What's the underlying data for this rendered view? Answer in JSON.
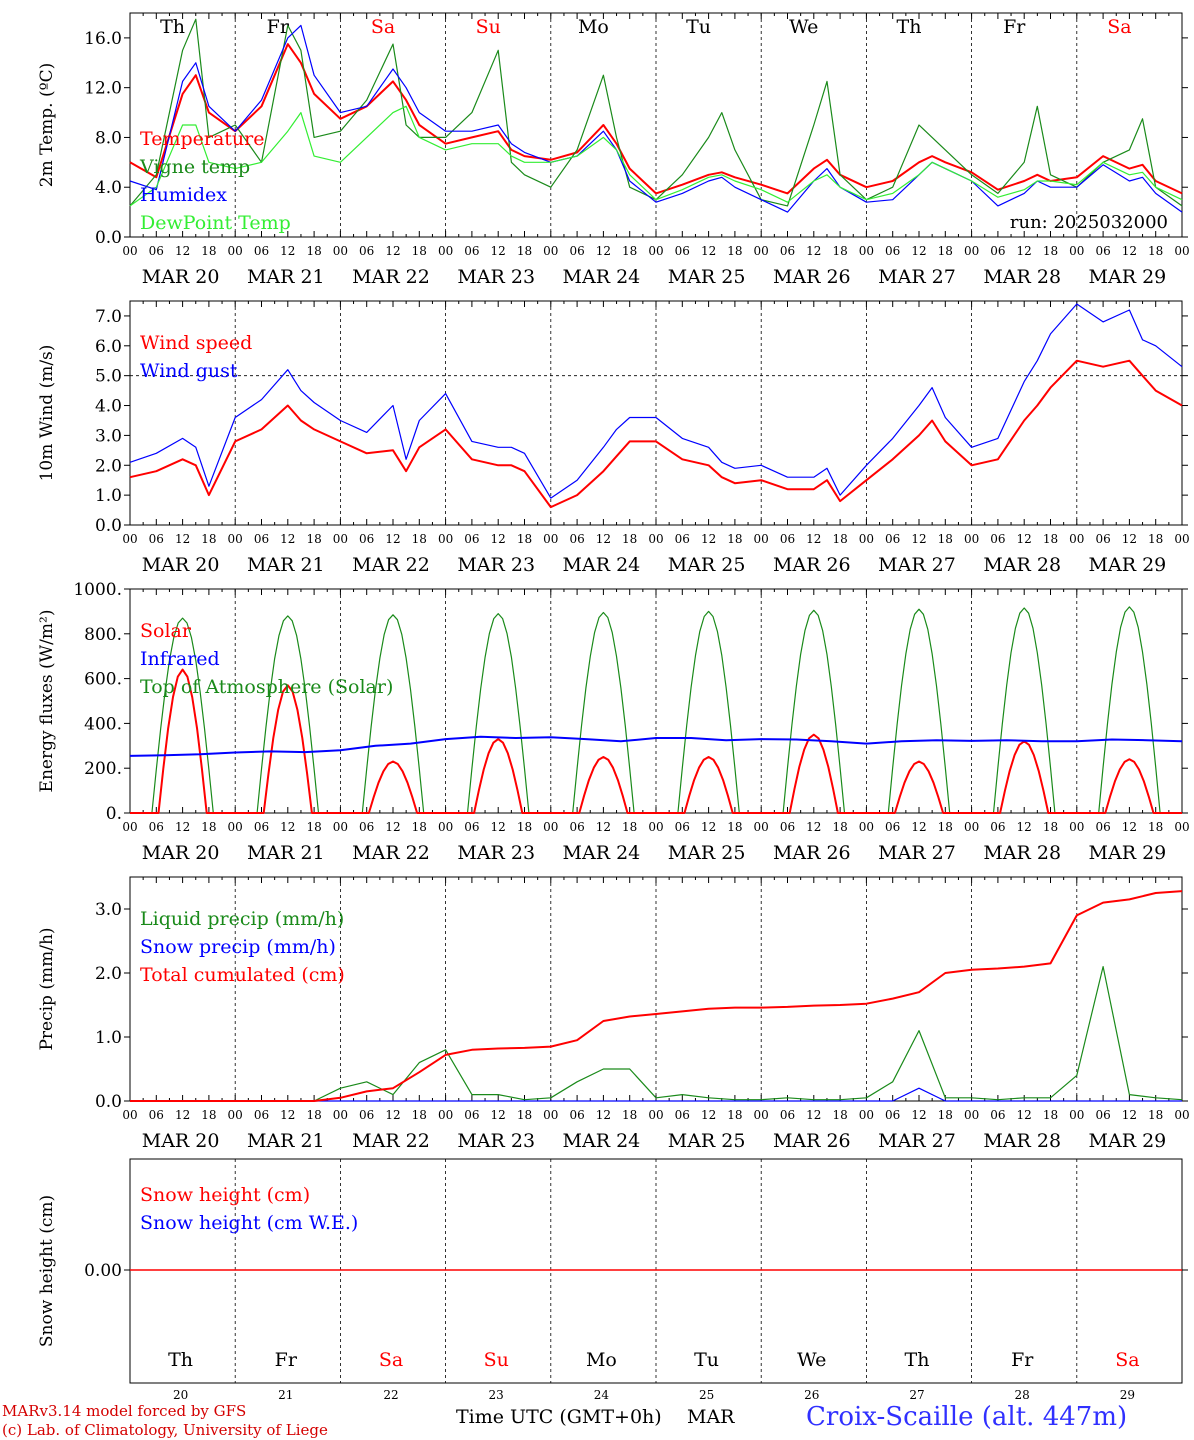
{
  "colors": {
    "red": "#ff0000",
    "green": "#1a8a1a",
    "blue": "#0000ff",
    "lightgreen": "#33ee33",
    "weekday": "#000000",
    "weekend": "#ff0000"
  },
  "days": {
    "weekday_labels": [
      "Th",
      "Fr",
      "Sa",
      "Su",
      "Mo",
      "Tu",
      "We",
      "Th",
      "Fr",
      "Sa"
    ],
    "weekend_flags": [
      false,
      false,
      true,
      true,
      false,
      false,
      false,
      false,
      false,
      true
    ],
    "date_labels": [
      "MAR 20",
      "MAR 21",
      "MAR 22",
      "MAR 23",
      "MAR 24",
      "MAR 25",
      "MAR 26",
      "MAR 27",
      "MAR 28",
      "MAR 29"
    ],
    "day_numbers": [
      "20",
      "21",
      "22",
      "23",
      "24",
      "25",
      "26",
      "27",
      "28",
      "29"
    ],
    "hour_ticks": [
      "00",
      "06",
      "12",
      "18"
    ],
    "final_tick": "00"
  },
  "footer": {
    "model_line": "MARv3.14 model forced by GFS",
    "copyright_line": "(c) Lab. of Climatology, University of Liege",
    "time_axis_label": "Time UTC (GMT+0h)",
    "month_label": "MAR",
    "station_title": "Croix-Scaille (alt. 447m)"
  },
  "chart_data": [
    {
      "type": "line",
      "ylabel": "2m Temp. (ºC)",
      "ylim": [
        0,
        18
      ],
      "yticks": [
        "0.0",
        "4.0",
        "8.0",
        "12.0",
        "16.0"
      ],
      "ytick_values": [
        0,
        4,
        8,
        12,
        16
      ],
      "annotation": "run: 2025032000",
      "x_hours": [
        0,
        6,
        12,
        15,
        18,
        24,
        30,
        36,
        39,
        42,
        48,
        54,
        60,
        63,
        66,
        72,
        78,
        84,
        87,
        90,
        96,
        102,
        108,
        111,
        114,
        120,
        126,
        132,
        135,
        138,
        144,
        150,
        156,
        159,
        162,
        168,
        174,
        180,
        183,
        186,
        192,
        198,
        204,
        207,
        210,
        216,
        222,
        228,
        231,
        234,
        240
      ],
      "series": [
        {
          "name": "Temperature",
          "color": "red",
          "values": [
            6.0,
            4.8,
            11.5,
            13.0,
            10.0,
            8.5,
            10.5,
            15.5,
            14.0,
            11.5,
            9.5,
            10.5,
            12.5,
            11.0,
            9.0,
            7.5,
            8.0,
            8.5,
            7.0,
            6.5,
            6.2,
            6.8,
            9.0,
            7.5,
            5.5,
            3.5,
            4.2,
            5.0,
            5.2,
            4.8,
            4.2,
            3.5,
            5.5,
            6.2,
            5.0,
            4.0,
            4.5,
            6.0,
            6.5,
            6.0,
            5.2,
            3.8,
            4.5,
            5.0,
            4.5,
            4.8,
            6.5,
            5.5,
            5.8,
            4.5,
            3.5
          ]
        },
        {
          "name": "Vigne temp",
          "color": "green",
          "values": [
            2.5,
            5.0,
            15.0,
            17.5,
            8.0,
            9.0,
            6.0,
            17.0,
            15.0,
            8.0,
            8.5,
            11.0,
            15.5,
            9.0,
            8.0,
            8.0,
            10.0,
            15.0,
            6.0,
            5.0,
            4.0,
            7.0,
            13.0,
            8.0,
            4.0,
            3.0,
            5.0,
            8.0,
            10.0,
            7.0,
            3.0,
            2.5,
            9.0,
            12.5,
            5.0,
            3.0,
            4.0,
            9.0,
            8.0,
            7.0,
            5.0,
            3.5,
            6.0,
            10.5,
            5.0,
            4.0,
            6.0,
            7.0,
            9.5,
            4.0,
            2.5
          ]
        },
        {
          "name": "Humidex",
          "color": "blue",
          "values": [
            4.5,
            3.8,
            12.5,
            14.0,
            10.5,
            8.5,
            11.0,
            16.0,
            17.0,
            13.0,
            10.0,
            10.5,
            13.5,
            12.0,
            10.0,
            8.5,
            8.5,
            9.0,
            7.5,
            6.8,
            6.0,
            6.5,
            8.5,
            7.0,
            4.5,
            2.8,
            3.5,
            4.5,
            4.8,
            4.0,
            3.0,
            2.0,
            4.5,
            5.5,
            4.0,
            2.8,
            3.0,
            5.0,
            6.0,
            5.5,
            4.5,
            2.5,
            3.5,
            4.5,
            4.0,
            4.0,
            5.8,
            4.5,
            4.8,
            3.5,
            2.0
          ]
        },
        {
          "name": "DewPoint Temp",
          "color": "lightgreen",
          "values": [
            2.5,
            4.0,
            9.0,
            9.0,
            6.0,
            5.5,
            6.0,
            8.5,
            10.0,
            6.5,
            6.0,
            8.0,
            10.0,
            10.5,
            8.0,
            7.0,
            7.5,
            7.5,
            6.5,
            6.0,
            6.0,
            6.5,
            8.0,
            7.0,
            5.0,
            3.0,
            3.8,
            4.8,
            5.0,
            4.5,
            3.8,
            2.8,
            4.5,
            5.0,
            4.0,
            3.0,
            3.5,
            5.0,
            6.0,
            5.5,
            4.5,
            3.2,
            3.8,
            4.5,
            4.5,
            4.2,
            6.0,
            5.0,
            5.2,
            4.0,
            3.0
          ]
        }
      ]
    },
    {
      "type": "line",
      "ylabel": "10m Wind (m/s)",
      "ylim": [
        0,
        7.5
      ],
      "yticks": [
        "0.0",
        "1.0",
        "2.0",
        "3.0",
        "4.0",
        "5.0",
        "6.0",
        "7.0"
      ],
      "ytick_values": [
        0,
        1,
        2,
        3,
        4,
        5,
        6,
        7
      ],
      "reference_line": 5.0,
      "x_hours": [
        0,
        6,
        12,
        15,
        18,
        24,
        30,
        36,
        39,
        42,
        48,
        54,
        60,
        63,
        66,
        72,
        78,
        84,
        87,
        90,
        96,
        102,
        108,
        111,
        114,
        120,
        126,
        132,
        135,
        138,
        144,
        150,
        156,
        159,
        162,
        168,
        174,
        180,
        183,
        186,
        192,
        198,
        204,
        207,
        210,
        216,
        222,
        228,
        231,
        234,
        240
      ],
      "series": [
        {
          "name": "Wind speed",
          "color": "red",
          "values": [
            1.6,
            1.8,
            2.2,
            2.0,
            1.0,
            2.8,
            3.2,
            4.0,
            3.5,
            3.2,
            2.8,
            2.4,
            2.5,
            1.8,
            2.6,
            3.2,
            2.2,
            2.0,
            2.0,
            1.8,
            0.6,
            1.0,
            1.8,
            2.3,
            2.8,
            2.8,
            2.2,
            2.0,
            1.6,
            1.4,
            1.5,
            1.2,
            1.2,
            1.5,
            0.8,
            1.5,
            2.2,
            3.0,
            3.5,
            2.8,
            2.0,
            2.2,
            3.5,
            4.0,
            4.6,
            5.5,
            5.3,
            5.5,
            5.0,
            4.5,
            4.0
          ]
        },
        {
          "name": "Wind gust",
          "color": "blue",
          "values": [
            2.1,
            2.4,
            2.9,
            2.6,
            1.3,
            3.6,
            4.2,
            5.2,
            4.5,
            4.1,
            3.5,
            3.1,
            4.0,
            2.2,
            3.5,
            4.4,
            2.8,
            2.6,
            2.6,
            2.4,
            0.9,
            1.5,
            2.6,
            3.2,
            3.6,
            3.6,
            2.9,
            2.6,
            2.1,
            1.9,
            2.0,
            1.6,
            1.6,
            1.9,
            1.0,
            2.0,
            2.9,
            4.0,
            4.6,
            3.6,
            2.6,
            2.9,
            4.8,
            5.5,
            6.4,
            7.4,
            6.8,
            7.2,
            6.2,
            6.0,
            5.3
          ]
        }
      ]
    },
    {
      "type": "line",
      "ylabel": "Energy fluxes (W/m²)",
      "ylim": [
        0,
        1000
      ],
      "yticks": [
        "0.",
        "200.",
        "400.",
        "600.",
        "800.",
        "1000."
      ],
      "ytick_values": [
        0,
        200,
        400,
        600,
        800,
        1000
      ],
      "series": [
        {
          "name": "Solar",
          "color": "red",
          "peaks": [
            640,
            570,
            230,
            330,
            250,
            250,
            350,
            230,
            320,
            240
          ]
        },
        {
          "name": "Infrared",
          "color": "blue",
          "values": [
            255,
            258,
            262,
            270,
            275,
            272,
            280,
            300,
            310,
            330,
            340,
            335,
            338,
            330,
            320,
            335,
            335,
            325,
            330,
            328,
            320,
            310,
            320,
            325,
            322,
            325,
            320,
            320,
            328,
            325,
            320
          ]
        },
        {
          "name": "Top of Atmosphere (Solar)",
          "color": "green",
          "peaks": [
            870,
            880,
            885,
            890,
            895,
            900,
            905,
            910,
            915,
            920
          ]
        }
      ]
    },
    {
      "type": "line",
      "ylabel": "Precip (mm/h)",
      "ylim": [
        0,
        3.5
      ],
      "yticks": [
        "0.0",
        "1.0",
        "2.0",
        "3.0"
      ],
      "ytick_values": [
        0,
        1,
        2,
        3
      ],
      "x_hours": [
        0,
        42,
        48,
        54,
        60,
        66,
        72,
        78,
        84,
        90,
        96,
        102,
        108,
        114,
        120,
        126,
        132,
        138,
        144,
        150,
        156,
        162,
        168,
        174,
        180,
        186,
        192,
        198,
        204,
        210,
        216,
        222,
        228,
        234,
        240
      ],
      "series": [
        {
          "name": "Liquid precip (mm/h)",
          "color": "green",
          "values": [
            0,
            0,
            0.2,
            0.3,
            0.1,
            0.6,
            0.8,
            0.1,
            0.1,
            0.02,
            0.05,
            0.3,
            0.5,
            0.5,
            0.05,
            0.1,
            0.05,
            0.02,
            0.02,
            0.05,
            0.02,
            0.02,
            0.05,
            0.3,
            1.1,
            0.05,
            0.05,
            0.02,
            0.05,
            0.05,
            0.4,
            2.1,
            0.1,
            0.05,
            0.02
          ]
        },
        {
          "name": "Snow precip (mm/h)",
          "color": "blue",
          "values": [
            0,
            0,
            0,
            0,
            0,
            0,
            0,
            0,
            0,
            0,
            0,
            0,
            0,
            0,
            0,
            0,
            0,
            0,
            0,
            0,
            0,
            0,
            0,
            0,
            0.2,
            0,
            0,
            0,
            0,
            0,
            0,
            0,
            0,
            0,
            0
          ]
        },
        {
          "name": "Total cumulated (cm)",
          "color": "red",
          "values": [
            0,
            0,
            0.05,
            0.15,
            0.2,
            0.45,
            0.72,
            0.8,
            0.82,
            0.83,
            0.85,
            0.95,
            1.25,
            1.32,
            1.36,
            1.4,
            1.44,
            1.46,
            1.46,
            1.47,
            1.49,
            1.5,
            1.52,
            1.6,
            1.7,
            2.0,
            2.05,
            2.07,
            2.1,
            2.15,
            2.9,
            3.1,
            3.15,
            3.25,
            3.28
          ]
        }
      ]
    },
    {
      "type": "line",
      "ylabel": "Snow height (cm)",
      "yticks": [
        "0.00"
      ],
      "ytick_values": [
        0
      ],
      "series": [
        {
          "name": "Snow height (cm)",
          "color": "red",
          "values": [
            0,
            0
          ]
        },
        {
          "name": "Snow height (cm W.E.)",
          "color": "blue",
          "values": [
            0,
            0
          ]
        }
      ]
    }
  ]
}
